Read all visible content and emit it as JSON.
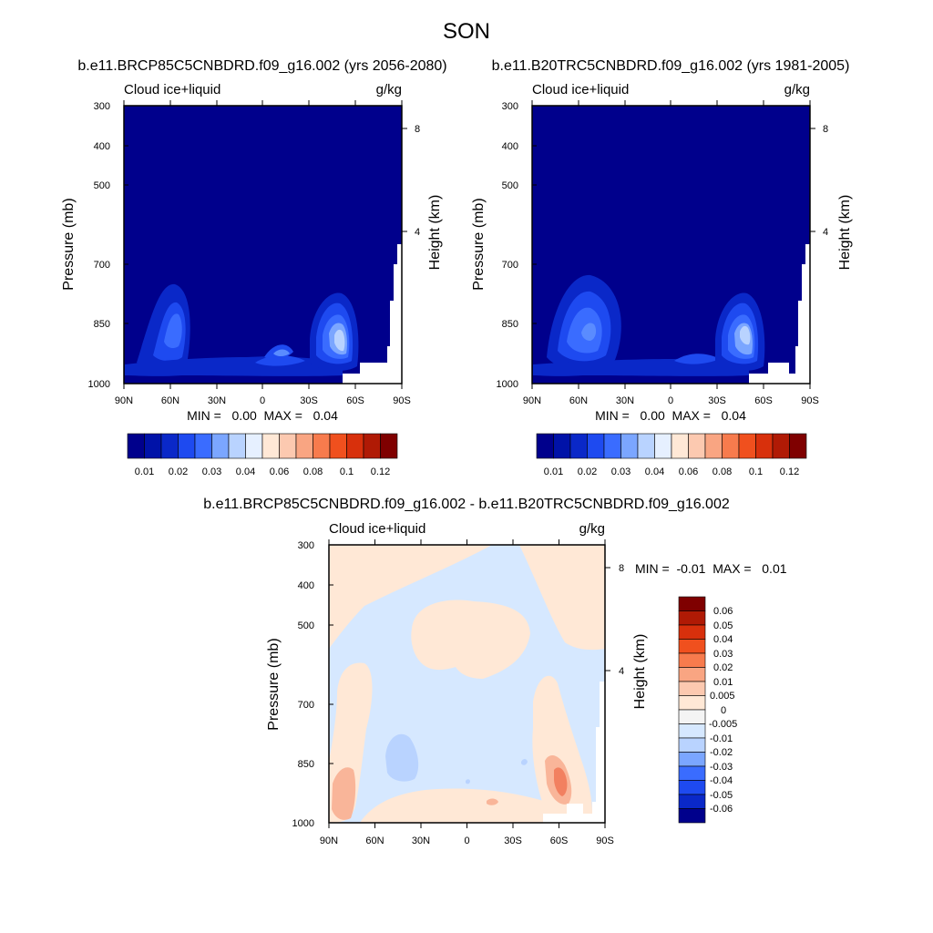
{
  "page_title": "SON",
  "colors": {
    "deep_blue": "#00008c",
    "light_blue": "#d6e8ff",
    "light_peach": "#ffe8d6",
    "salmon": "#f9b599",
    "white": "#ffffff"
  },
  "chart_data": [
    {
      "type": "contour",
      "title": "b.e11.BRCP85C5CNBDRD.f09_g16.002 (yrs 2056-2080)",
      "left_subtitle": "Cloud ice+liquid",
      "right_subtitle": "g/kg",
      "ylabel": "Pressure (mb)",
      "ylabel_right": "Height (km)",
      "xticks": [
        "90N",
        "60N",
        "30N",
        "0",
        "30S",
        "60S",
        "90S"
      ],
      "yticks": [
        "300",
        "400",
        "500",
        "700",
        "850",
        "1000"
      ],
      "yticks_right": [
        "8",
        "4"
      ],
      "min_max_text": "MIN =   0.00  MAX =   0.04",
      "colorbar_labels": [
        "0.01",
        "0.02",
        "0.03",
        "0.04",
        "0.06",
        "0.08",
        "0.1",
        "0.12"
      ]
    },
    {
      "type": "contour",
      "title": "b.e11.B20TRC5CNBDRD.f09_g16.002 (yrs 1981-2005)",
      "left_subtitle": "Cloud ice+liquid",
      "right_subtitle": "g/kg",
      "ylabel": "Pressure (mb)",
      "ylabel_right": "Height (km)",
      "xticks": [
        "90N",
        "60N",
        "30N",
        "0",
        "30S",
        "60S",
        "90S"
      ],
      "yticks": [
        "300",
        "400",
        "500",
        "700",
        "850",
        "1000"
      ],
      "yticks_right": [
        "8",
        "4"
      ],
      "min_max_text": "MIN =   0.00  MAX =   0.04",
      "colorbar_labels": [
        "0.01",
        "0.02",
        "0.03",
        "0.04",
        "0.06",
        "0.08",
        "0.1",
        "0.12"
      ]
    },
    {
      "type": "contour",
      "title": "b.e11.BRCP85C5CNBDRD.f09_g16.002 - b.e11.B20TRC5CNBDRD.f09_g16.002",
      "left_subtitle": "Cloud ice+liquid",
      "right_subtitle": "g/kg",
      "ylabel": "Pressure (mb)",
      "ylabel_right": "Height (km)",
      "xticks": [
        "90N",
        "60N",
        "30N",
        "0",
        "30S",
        "60S",
        "90S"
      ],
      "yticks": [
        "300",
        "400",
        "500",
        "700",
        "850",
        "1000"
      ],
      "yticks_right": [
        "8",
        "4"
      ],
      "min_max_text": "MIN =  -0.01  MAX =   0.01",
      "colorbar_labels": [
        "0.06",
        "0.05",
        "0.04",
        "0.03",
        "0.02",
        "0.01",
        "0.005",
        "0",
        "-0.005",
        "-0.01",
        "-0.02",
        "-0.03",
        "-0.04",
        "-0.05",
        "-0.06"
      ]
    }
  ]
}
